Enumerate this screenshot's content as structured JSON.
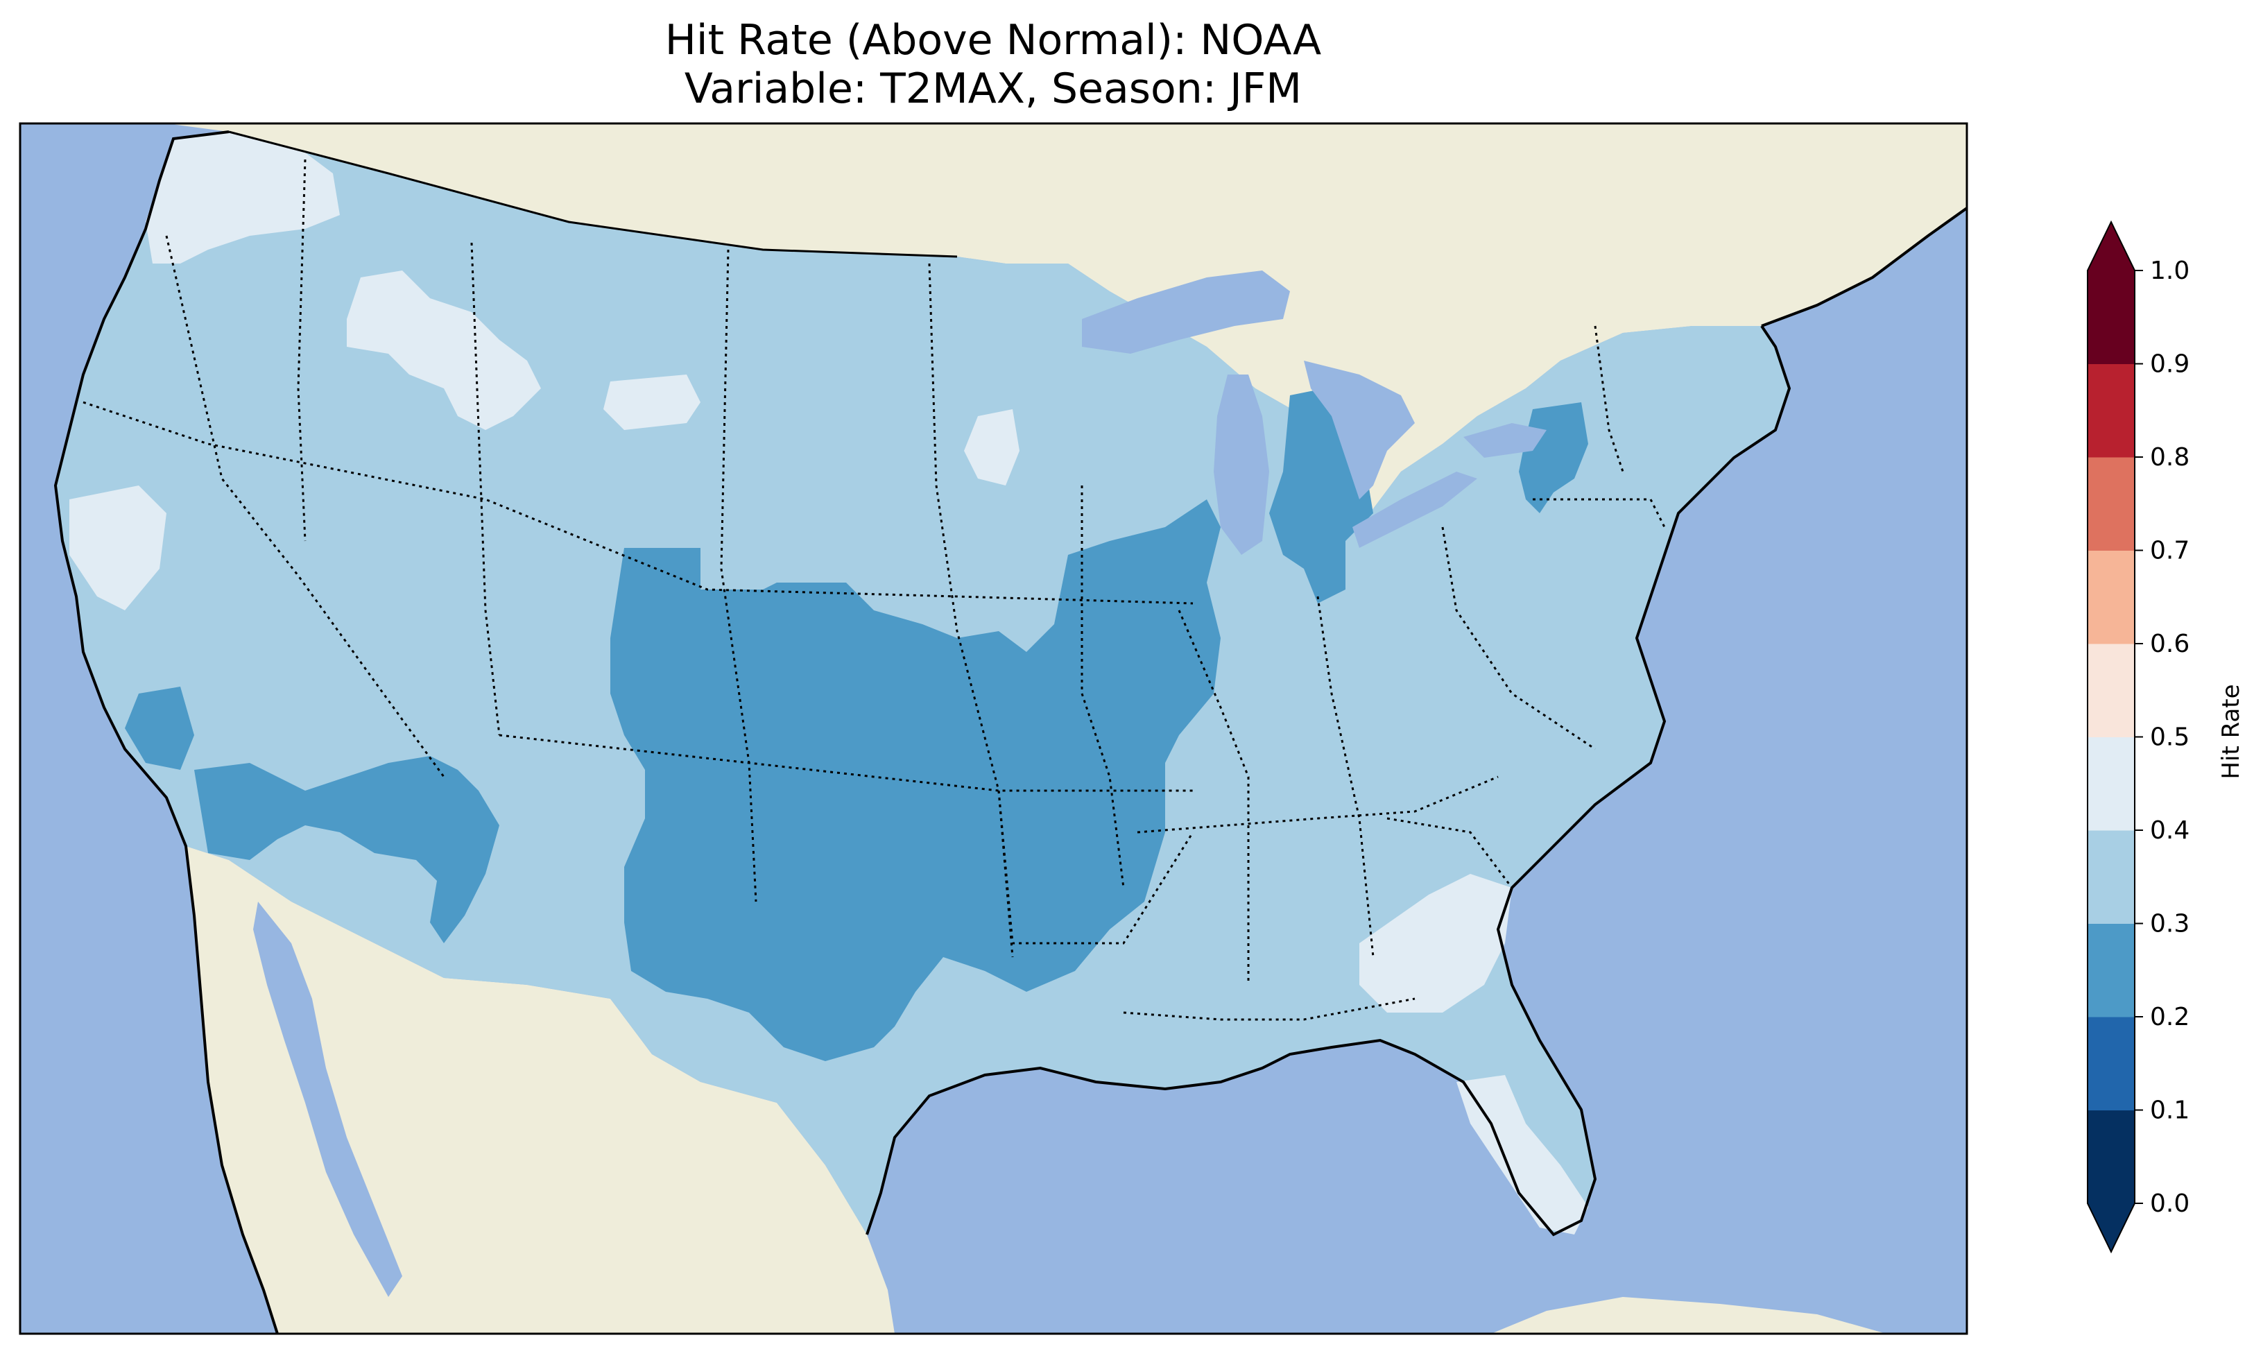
{
  "title": {
    "line1": "Hit Rate (Above Normal): NOAA",
    "line2": "Variable: T2MAX, Season: JFM"
  },
  "colors": {
    "ocean": "#97b6e1",
    "land": "#efedda",
    "lake": "#97b6e1",
    "coast": "#000000"
  },
  "colorbar": {
    "label": "Hit Rate",
    "extend": "both",
    "ticks": [
      "0.0",
      "0.1",
      "0.2",
      "0.3",
      "0.4",
      "0.5",
      "0.6",
      "0.7",
      "0.8",
      "0.9",
      "1.0"
    ],
    "bins": [
      {
        "range": [
          0.0,
          0.1
        ],
        "color": "#053061"
      },
      {
        "range": [
          0.1,
          0.2
        ],
        "color": "#2166ac"
      },
      {
        "range": [
          0.2,
          0.3
        ],
        "color": "#4d9ac7"
      },
      {
        "range": [
          0.3,
          0.4
        ],
        "color": "#a8cfe4"
      },
      {
        "range": [
          0.4,
          0.5
        ],
        "color": "#e1ecf4"
      },
      {
        "range": [
          0.5,
          0.6
        ],
        "color": "#f9e5db"
      },
      {
        "range": [
          0.6,
          0.7
        ],
        "color": "#f6b597"
      },
      {
        "range": [
          0.7,
          0.8
        ],
        "color": "#de725f"
      },
      {
        "range": [
          0.8,
          0.9
        ],
        "color": "#b8212f"
      },
      {
        "range": [
          0.9,
          1.0
        ],
        "color": "#67001f"
      }
    ]
  },
  "regions": [
    {
      "name": "Contiguous United States",
      "hit_rate_bin": "0.3-0.4"
    },
    {
      "name": "Central Plains and South-Central",
      "hit_rate_bin": "0.2-0.3"
    },
    {
      "name": "Southwest",
      "hit_rate_bin": "0.2-0.3"
    },
    {
      "name": "Southern California",
      "hit_rate_bin": "0.2-0.3"
    },
    {
      "name": "Michigan Lower Peninsula",
      "hit_rate_bin": "0.2-0.3"
    },
    {
      "name": "Pennsylvania and New York",
      "hit_rate_bin": "0.2-0.3"
    },
    {
      "name": "Mississippi Valley",
      "hit_rate_bin": "0.2-0.3"
    },
    {
      "name": "Pacific Northwest coast",
      "hit_rate_bin": "0.4-0.5"
    },
    {
      "name": "Idaho and Montana",
      "hit_rate_bin": "0.4-0.5"
    },
    {
      "name": "Northern California coast",
      "hit_rate_bin": "0.4-0.5"
    },
    {
      "name": "Georgia and South Carolina",
      "hit_rate_bin": "0.4-0.5"
    },
    {
      "name": "Florida Peninsula",
      "hit_rate_bin": "0.4-0.5"
    }
  ]
}
